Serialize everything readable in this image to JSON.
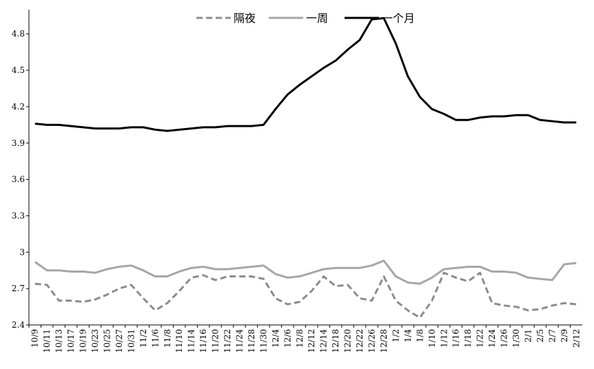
{
  "chart_data": {
    "type": "line",
    "categories": [
      "10/9",
      "10/11",
      "10/13",
      "10/17",
      "10/19",
      "10/23",
      "10/25",
      "10/27",
      "10/31",
      "11/2",
      "11/6",
      "11/8",
      "11/10",
      "11/14",
      "11/16",
      "11/20",
      "11/22",
      "11/24",
      "11/28",
      "11/30",
      "12/4",
      "12/6",
      "12/8",
      "12/12",
      "12/14",
      "12/18",
      "12/20",
      "12/22",
      "12/26",
      "12/28",
      "1/2",
      "1/4",
      "1/8",
      "1/10",
      "1/12",
      "1/16",
      "1/18",
      "1/22",
      "1/24",
      "1/26",
      "1/30",
      "2/1",
      "2/5",
      "2/7",
      "2/9",
      "2/12"
    ],
    "series": [
      {
        "name": "隔夜",
        "color": "#8c8c8c",
        "dashed": true,
        "values": [
          2.74,
          2.73,
          2.6,
          2.6,
          2.59,
          2.61,
          2.65,
          2.7,
          2.73,
          2.62,
          2.52,
          2.58,
          2.68,
          2.79,
          2.81,
          2.77,
          2.8,
          2.8,
          2.8,
          2.78,
          2.62,
          2.57,
          2.59,
          2.68,
          2.8,
          2.72,
          2.73,
          2.62,
          2.6,
          2.8,
          2.6,
          2.52,
          2.46,
          2.6,
          2.83,
          2.79,
          2.76,
          2.83,
          2.58,
          2.56,
          2.55,
          2.52,
          2.53,
          2.56,
          2.58,
          2.57
        ]
      },
      {
        "name": "一周",
        "color": "#a6a6a6",
        "dashed": false,
        "values": [
          2.92,
          2.85,
          2.85,
          2.84,
          2.84,
          2.83,
          2.86,
          2.88,
          2.89,
          2.85,
          2.8,
          2.8,
          2.84,
          2.87,
          2.88,
          2.86,
          2.86,
          2.87,
          2.88,
          2.89,
          2.82,
          2.79,
          2.8,
          2.83,
          2.86,
          2.87,
          2.87,
          2.87,
          2.89,
          2.93,
          2.8,
          2.75,
          2.74,
          2.79,
          2.86,
          2.87,
          2.88,
          2.88,
          2.84,
          2.84,
          2.83,
          2.79,
          2.78,
          2.77,
          2.9,
          2.91
        ]
      },
      {
        "name": "一个月",
        "color": "#000000",
        "dashed": false,
        "values": [
          4.06,
          4.05,
          4.05,
          4.04,
          4.03,
          4.02,
          4.02,
          4.02,
          4.03,
          4.03,
          4.01,
          4.0,
          4.01,
          4.02,
          4.03,
          4.03,
          4.04,
          4.04,
          4.04,
          4.05,
          4.18,
          4.3,
          4.38,
          4.45,
          4.52,
          4.58,
          4.67,
          4.75,
          4.92,
          4.93,
          4.72,
          4.45,
          4.28,
          4.18,
          4.14,
          4.09,
          4.09,
          4.11,
          4.12,
          4.12,
          4.13,
          4.13,
          4.09,
          4.08,
          4.07,
          4.07
        ]
      }
    ],
    "ylim": [
      2.4,
      5.0
    ],
    "yticks": [
      2.4,
      2.7,
      3,
      3.3,
      3.6,
      3.9,
      4.2,
      4.5,
      4.8
    ],
    "legend": "top"
  }
}
